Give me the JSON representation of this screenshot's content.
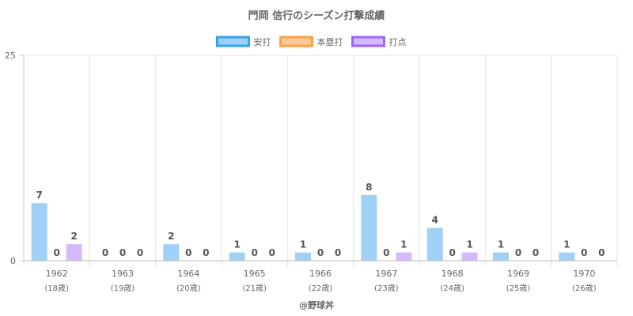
{
  "chart_data": {
    "type": "bar",
    "title": "門岡 信行のシーズン打撃成績",
    "categories": [
      "1962",
      "1963",
      "1964",
      "1965",
      "1966",
      "1967",
      "1968",
      "1969",
      "1970"
    ],
    "category_sublabels": [
      "(18歳)",
      "(19歳)",
      "(20歳)",
      "(21歳)",
      "(22歳)",
      "(23歳)",
      "(24歳)",
      "(25歳)",
      "(26歳)"
    ],
    "series": [
      {
        "name": "安打",
        "values": [
          7,
          0,
          2,
          1,
          1,
          8,
          4,
          1,
          1
        ],
        "color": "#9fd0f5",
        "border": "#36a2eb"
      },
      {
        "name": "本塁打",
        "values": [
          0,
          0,
          0,
          0,
          0,
          0,
          0,
          0,
          0
        ],
        "color": "#ffc999",
        "border": "#ff9f40"
      },
      {
        "name": "打点",
        "values": [
          2,
          0,
          0,
          0,
          0,
          1,
          1,
          0,
          0
        ],
        "color": "#d5b8ff",
        "border": "#9966ff"
      }
    ],
    "ylim": [
      0,
      25
    ],
    "yticks": [
      "0",
      "25"
    ],
    "grid": true,
    "legend": "top-center"
  },
  "credit": "@野球丼"
}
